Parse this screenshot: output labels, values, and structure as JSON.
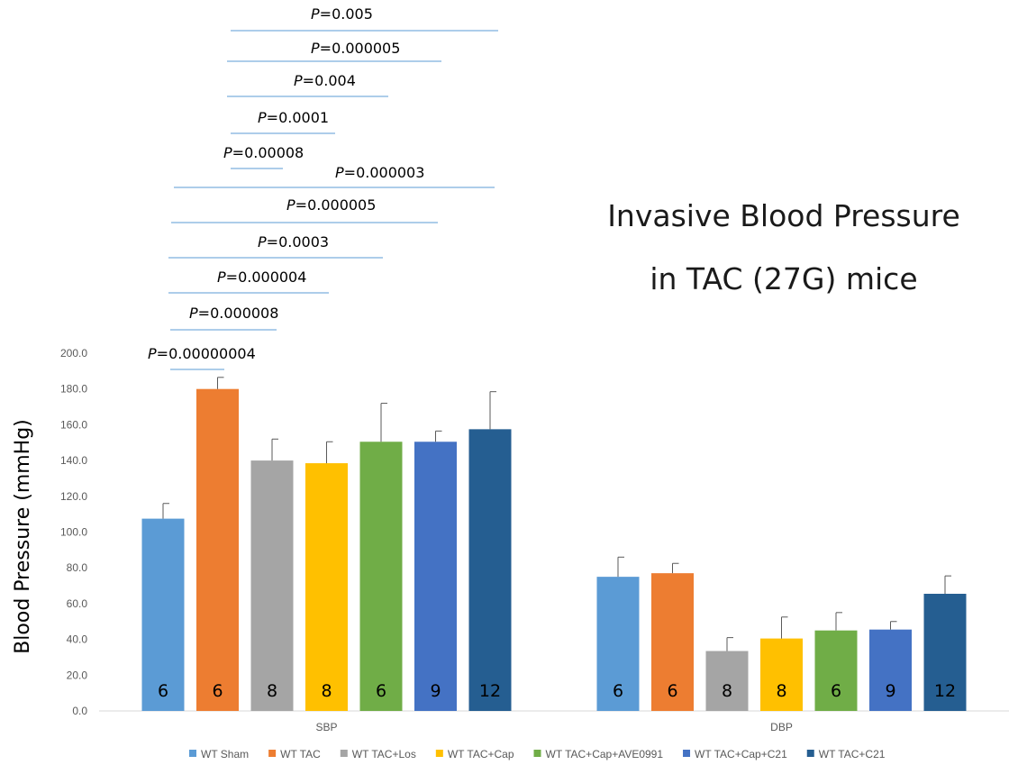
{
  "chart_data": {
    "type": "bar",
    "title": [
      "Invasive Blood Pressure",
      "in TAC (27G) mice"
    ],
    "ylabel": "Blood Pressure (mmHg)",
    "xlabel": "",
    "ylim": [
      0,
      200
    ],
    "yticks": [
      "0.0",
      "20.0",
      "40.0",
      "60.0",
      "80.0",
      "100.0",
      "120.0",
      "140.0",
      "160.0",
      "180.0",
      "200.0"
    ],
    "categories": [
      "SBP",
      "DBP"
    ],
    "legend_position": "bottom",
    "grid": false,
    "series": [
      {
        "name": "WT Sham",
        "color": "#5B9BD5",
        "values": [
          107.5,
          75.0
        ],
        "errors": [
          8.5,
          11.0
        ],
        "n": [
          "6",
          "6"
        ]
      },
      {
        "name": "WT TAC",
        "color": "#ED7D31",
        "values": [
          180.0,
          77.0
        ],
        "errors": [
          6.5,
          5.5
        ],
        "n": [
          "6",
          "6"
        ]
      },
      {
        "name": "WT TAC+Los",
        "color": "#A5A5A5",
        "values": [
          140.0,
          33.5
        ],
        "errors": [
          12.0,
          7.5
        ],
        "n": [
          "8",
          "8"
        ]
      },
      {
        "name": "WT TAC+Cap",
        "color": "#FFC000",
        "values": [
          138.5,
          40.5
        ],
        "errors": [
          12.0,
          12.0
        ],
        "n": [
          "8",
          "8"
        ]
      },
      {
        "name": "WT TAC+Cap+AVE0991",
        "color": "#70AD47",
        "values": [
          150.5,
          45.0
        ],
        "errors": [
          21.5,
          10.0
        ],
        "n": [
          "6",
          "6"
        ]
      },
      {
        "name": "WT TAC+Cap+C21",
        "color": "#4472C4",
        "values": [
          150.5,
          45.5
        ],
        "errors": [
          6.0,
          4.5
        ],
        "n": [
          "9",
          "9"
        ]
      },
      {
        "name": "WT TAC+C21",
        "color": "#255E91",
        "values": [
          157.5,
          65.5
        ],
        "errors": [
          21.0,
          10.0
        ],
        "n": [
          "12",
          "12"
        ]
      }
    ],
    "annotations": {
      "p_prefix": "P",
      "items": [
        {
          "text": "=0.005",
          "from": 1,
          "to": 6
        },
        {
          "text": "=0.000005",
          "from": 1,
          "to": 5
        },
        {
          "text": "=0.004",
          "from": 1,
          "to": 4
        },
        {
          "text": "=0.0001",
          "from": 1,
          "to": 3
        },
        {
          "text": "=0.00008",
          "from": 1,
          "to": 2
        },
        {
          "text": "=0.000003",
          "from": 0,
          "to": 6
        },
        {
          "text": "=0.000005",
          "from": 0,
          "to": 5
        },
        {
          "text": "=0.0003",
          "from": 0,
          "to": 4
        },
        {
          "text": "=0.000004",
          "from": 0,
          "to": 3
        },
        {
          "text": "=0.000008",
          "from": 0,
          "to": 2
        },
        {
          "text": "=0.00000004",
          "from": 0,
          "to": 1
        }
      ]
    }
  }
}
